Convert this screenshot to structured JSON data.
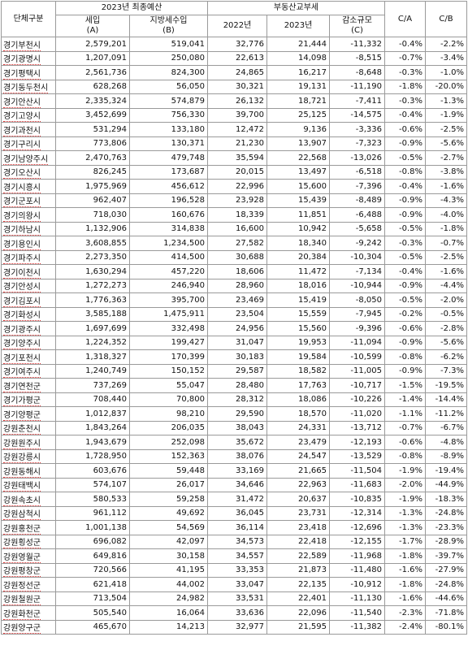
{
  "headers": {
    "unit": "단체구분",
    "budget_group": "2023년 최종예산",
    "tax_group": "부동산교부세",
    "ratio_ca": "C/A",
    "ratio_cb": "C/B",
    "tax_rev_line1": "세입",
    "tax_rev_line2": "(A)",
    "local_tax_line1": "지방세수입",
    "local_tax_line2": "(B)",
    "year_2022": "2022년",
    "year_2023": "2023년",
    "decrease_line1": "감소규모",
    "decrease_line2": "(C)"
  },
  "rows": [
    {
      "name": "경기부천시",
      "a": "2,579,201",
      "b": "519,041",
      "y2022": "32,776",
      "y2023": "21,444",
      "c": "-11,332",
      "ca": "-0.4%",
      "cb": "-2.2%"
    },
    {
      "name": "경기광명시",
      "a": "1,207,091",
      "b": "250,080",
      "y2022": "22,613",
      "y2023": "14,098",
      "c": "-8,515",
      "ca": "-0.7%",
      "cb": "-3.4%"
    },
    {
      "name": "경기평택시",
      "a": "2,561,736",
      "b": "824,300",
      "y2022": "24,865",
      "y2023": "16,217",
      "c": "-8,648",
      "ca": "-0.3%",
      "cb": "-1.0%"
    },
    {
      "name": "경기동두천시",
      "a": "628,268",
      "b": "56,050",
      "y2022": "30,321",
      "y2023": "19,131",
      "c": "-11,190",
      "ca": "-1.8%",
      "cb": "-20.0%"
    },
    {
      "name": "경기안산시",
      "a": "2,335,324",
      "b": "574,879",
      "y2022": "26,132",
      "y2023": "18,721",
      "c": "-7,411",
      "ca": "-0.3%",
      "cb": "-1.3%"
    },
    {
      "name": "경기고양시",
      "a": "3,452,699",
      "b": "756,330",
      "y2022": "39,700",
      "y2023": "25,125",
      "c": "-14,575",
      "ca": "-0.4%",
      "cb": "-1.9%"
    },
    {
      "name": "경기과천시",
      "a": "531,294",
      "b": "133,180",
      "y2022": "12,472",
      "y2023": "9,136",
      "c": "-3,336",
      "ca": "-0.6%",
      "cb": "-2.5%"
    },
    {
      "name": "경기구리시",
      "a": "773,806",
      "b": "130,371",
      "y2022": "21,230",
      "y2023": "13,907",
      "c": "-7,323",
      "ca": "-0.9%",
      "cb": "-5.6%"
    },
    {
      "name": "경기남양주시",
      "a": "2,470,763",
      "b": "479,748",
      "y2022": "35,594",
      "y2023": "22,568",
      "c": "-13,026",
      "ca": "-0.5%",
      "cb": "-2.7%"
    },
    {
      "name": "경기오산시",
      "a": "826,245",
      "b": "173,687",
      "y2022": "20,015",
      "y2023": "13,497",
      "c": "-6,518",
      "ca": "-0.8%",
      "cb": "-3.8%"
    },
    {
      "name": "경기시흥시",
      "a": "1,975,969",
      "b": "456,612",
      "y2022": "22,996",
      "y2023": "15,600",
      "c": "-7,396",
      "ca": "-0.4%",
      "cb": "-1.6%"
    },
    {
      "name": "경기군포시",
      "a": "962,407",
      "b": "196,528",
      "y2022": "23,928",
      "y2023": "15,439",
      "c": "-8,489",
      "ca": "-0.9%",
      "cb": "-4.3%"
    },
    {
      "name": "경기의왕시",
      "a": "718,030",
      "b": "160,676",
      "y2022": "18,339",
      "y2023": "11,851",
      "c": "-6,488",
      "ca": "-0.9%",
      "cb": "-4.0%"
    },
    {
      "name": "경기하남시",
      "a": "1,132,906",
      "b": "314,838",
      "y2022": "16,600",
      "y2023": "10,942",
      "c": "-5,658",
      "ca": "-0.5%",
      "cb": "-1.8%"
    },
    {
      "name": "경기용인시",
      "a": "3,608,855",
      "b": "1,234,500",
      "y2022": "27,582",
      "y2023": "18,340",
      "c": "-9,242",
      "ca": "-0.3%",
      "cb": "-0.7%"
    },
    {
      "name": "경기파주시",
      "a": "2,273,350",
      "b": "414,500",
      "y2022": "30,688",
      "y2023": "20,384",
      "c": "-10,304",
      "ca": "-0.5%",
      "cb": "-2.5%"
    },
    {
      "name": "경기이천시",
      "a": "1,630,294",
      "b": "457,220",
      "y2022": "18,606",
      "y2023": "11,472",
      "c": "-7,134",
      "ca": "-0.4%",
      "cb": "-1.6%"
    },
    {
      "name": "경기안성시",
      "a": "1,272,273",
      "b": "246,940",
      "y2022": "28,960",
      "y2023": "18,016",
      "c": "-10,944",
      "ca": "-0.9%",
      "cb": "-4.4%"
    },
    {
      "name": "경기김포시",
      "a": "1,776,363",
      "b": "395,700",
      "y2022": "23,469",
      "y2023": "15,419",
      "c": "-8,050",
      "ca": "-0.5%",
      "cb": "-2.0%"
    },
    {
      "name": "경기화성시",
      "a": "3,585,188",
      "b": "1,475,911",
      "y2022": "23,504",
      "y2023": "15,559",
      "c": "-7,945",
      "ca": "-0.2%",
      "cb": "-0.5%"
    },
    {
      "name": "경기광주시",
      "a": "1,697,699",
      "b": "332,498",
      "y2022": "24,956",
      "y2023": "15,560",
      "c": "-9,396",
      "ca": "-0.6%",
      "cb": "-2.8%"
    },
    {
      "name": "경기양주시",
      "a": "1,224,352",
      "b": "199,427",
      "y2022": "31,047",
      "y2023": "19,953",
      "c": "-11,094",
      "ca": "-0.9%",
      "cb": "-5.6%"
    },
    {
      "name": "경기포천시",
      "a": "1,318,327",
      "b": "170,399",
      "y2022": "30,183",
      "y2023": "19,584",
      "c": "-10,599",
      "ca": "-0.8%",
      "cb": "-6.2%"
    },
    {
      "name": "경기여주시",
      "a": "1,240,749",
      "b": "150,152",
      "y2022": "29,587",
      "y2023": "18,582",
      "c": "-11,005",
      "ca": "-0.9%",
      "cb": "-7.3%"
    },
    {
      "name": "경기연천군",
      "a": "737,269",
      "b": "55,047",
      "y2022": "28,480",
      "y2023": "17,763",
      "c": "-10,717",
      "ca": "-1.5%",
      "cb": "-19.5%"
    },
    {
      "name": "경기가평군",
      "a": "708,440",
      "b": "70,800",
      "y2022": "28,312",
      "y2023": "18,086",
      "c": "-10,226",
      "ca": "-1.4%",
      "cb": "-14.4%"
    },
    {
      "name": "경기양평군",
      "a": "1,012,837",
      "b": "98,210",
      "y2022": "29,590",
      "y2023": "18,570",
      "c": "-11,020",
      "ca": "-1.1%",
      "cb": "-11.2%"
    },
    {
      "name": "강원춘천시",
      "a": "1,843,264",
      "b": "206,035",
      "y2022": "38,043",
      "y2023": "24,331",
      "c": "-13,712",
      "ca": "-0.7%",
      "cb": "-6.7%"
    },
    {
      "name": "강원원주시",
      "a": "1,943,679",
      "b": "252,098",
      "y2022": "35,672",
      "y2023": "23,479",
      "c": "-12,193",
      "ca": "-0.6%",
      "cb": "-4.8%"
    },
    {
      "name": "강원강릉시",
      "a": "1,728,950",
      "b": "152,363",
      "y2022": "38,076",
      "y2023": "24,547",
      "c": "-13,529",
      "ca": "-0.8%",
      "cb": "-8.9%"
    },
    {
      "name": "강원동해시",
      "a": "603,676",
      "b": "59,448",
      "y2022": "33,169",
      "y2023": "21,665",
      "c": "-11,504",
      "ca": "-1.9%",
      "cb": "-19.4%"
    },
    {
      "name": "강원태백시",
      "a": "574,107",
      "b": "26,017",
      "y2022": "34,646",
      "y2023": "22,963",
      "c": "-11,683",
      "ca": "-2.0%",
      "cb": "-44.9%"
    },
    {
      "name": "강원속초시",
      "a": "580,533",
      "b": "59,258",
      "y2022": "31,472",
      "y2023": "20,637",
      "c": "-10,835",
      "ca": "-1.9%",
      "cb": "-18.3%"
    },
    {
      "name": "강원삼척시",
      "a": "961,112",
      "b": "49,692",
      "y2022": "36,045",
      "y2023": "23,731",
      "c": "-12,314",
      "ca": "-1.3%",
      "cb": "-24.8%"
    },
    {
      "name": "강원홍천군",
      "a": "1,001,138",
      "b": "54,569",
      "y2022": "36,114",
      "y2023": "23,418",
      "c": "-12,696",
      "ca": "-1.3%",
      "cb": "-23.3%"
    },
    {
      "name": "강원횡성군",
      "a": "696,082",
      "b": "42,097",
      "y2022": "34,573",
      "y2023": "22,418",
      "c": "-12,155",
      "ca": "-1.7%",
      "cb": "-28.9%"
    },
    {
      "name": "강원영월군",
      "a": "649,816",
      "b": "30,158",
      "y2022": "34,557",
      "y2023": "22,589",
      "c": "-11,968",
      "ca": "-1.8%",
      "cb": "-39.7%"
    },
    {
      "name": "강원평창군",
      "a": "720,566",
      "b": "41,195",
      "y2022": "33,353",
      "y2023": "21,873",
      "c": "-11,480",
      "ca": "-1.6%",
      "cb": "-27.9%"
    },
    {
      "name": "강원정선군",
      "a": "621,418",
      "b": "44,002",
      "y2022": "33,047",
      "y2023": "22,135",
      "c": "-10,912",
      "ca": "-1.8%",
      "cb": "-24.8%"
    },
    {
      "name": "강원철원군",
      "a": "713,504",
      "b": "24,982",
      "y2022": "33,531",
      "y2023": "22,401",
      "c": "-11,130",
      "ca": "-1.6%",
      "cb": "-44.6%"
    },
    {
      "name": "강원화천군",
      "a": "505,540",
      "b": "16,064",
      "y2022": "33,636",
      "y2023": "22,096",
      "c": "-11,540",
      "ca": "-2.3%",
      "cb": "-71.8%"
    },
    {
      "name": "강원양구군",
      "a": "465,670",
      "b": "14,213",
      "y2022": "32,977",
      "y2023": "21,595",
      "c": "-11,382",
      "ca": "-2.4%",
      "cb": "-80.1%"
    }
  ]
}
